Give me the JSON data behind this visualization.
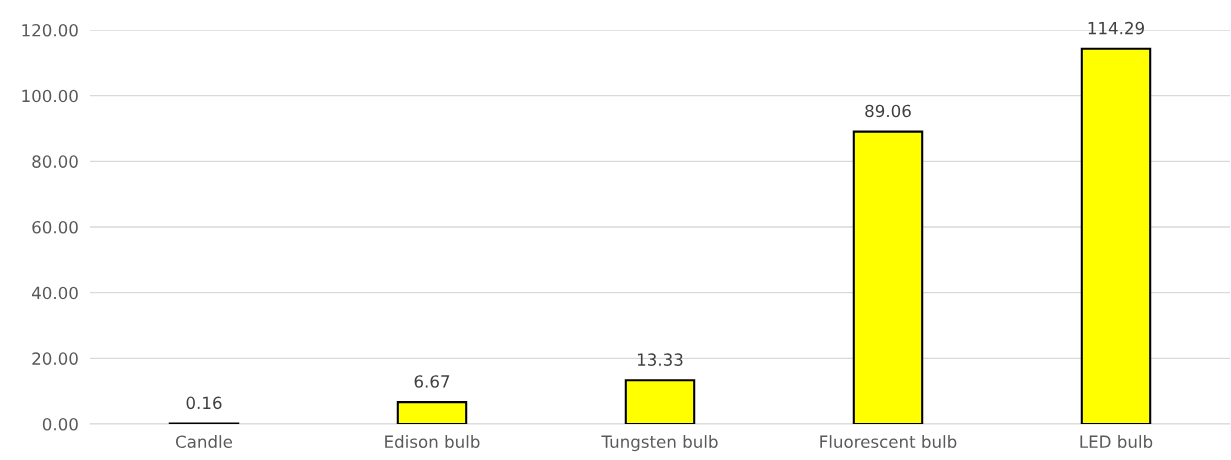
{
  "chart_data": {
    "type": "bar",
    "categories": [
      "Candle",
      "Edison bulb",
      "Tungsten bulb",
      "Fluorescent bulb",
      "LED bulb"
    ],
    "values": [
      0.16,
      6.67,
      13.33,
      89.06,
      114.29
    ],
    "color": "#ffff00",
    "ylim": [
      0,
      120
    ],
    "yticks": [
      {
        "value": 0,
        "label": "0.00"
      },
      {
        "value": 20,
        "label": "20.00"
      },
      {
        "value": 40,
        "label": "40.00"
      },
      {
        "value": 60,
        "label": "60.00"
      },
      {
        "value": 80,
        "label": "80.00"
      },
      {
        "value": 100,
        "label": "100.00"
      },
      {
        "value": 120,
        "label": "120.00"
      }
    ],
    "grid": "y",
    "data_labels": true
  }
}
